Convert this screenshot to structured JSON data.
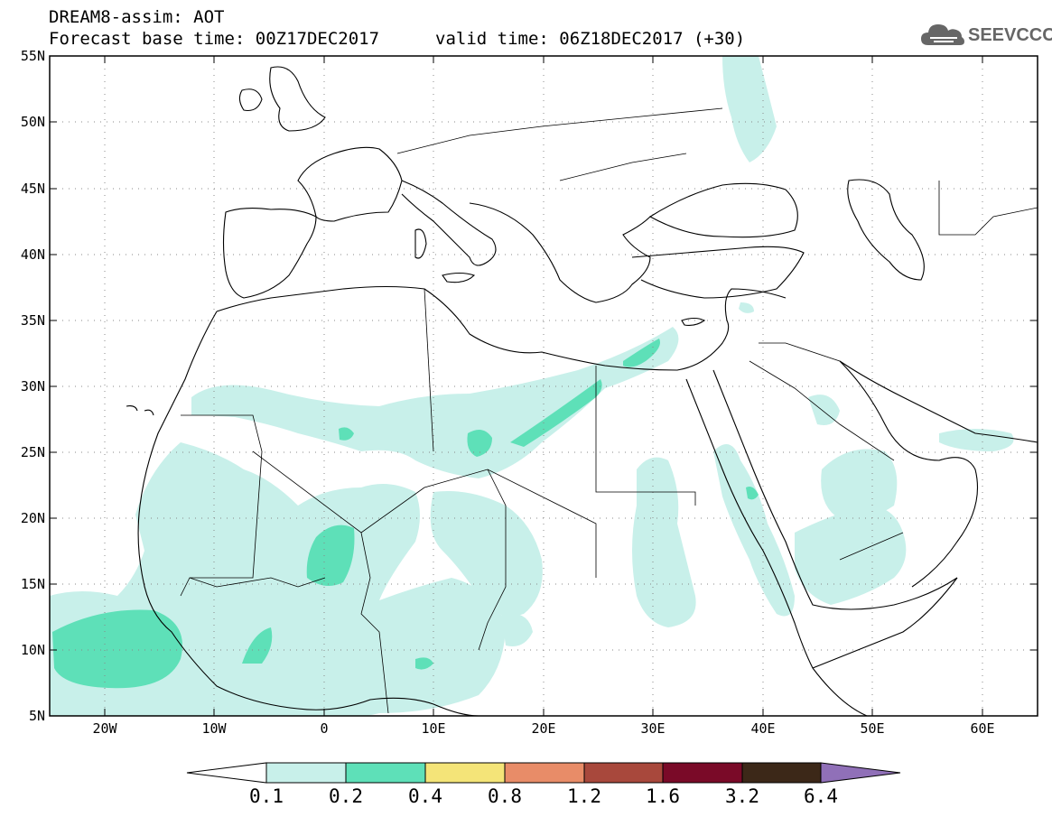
{
  "title": {
    "line1": "DREAM8-assim: AOT",
    "base_time": "Forecast base time: 00Z17DEC2017",
    "valid_time": "valid time: 06Z18DEC2017 (+30)"
  },
  "logo": {
    "text": "SEEVCCC",
    "icon": "cloud-icon"
  },
  "axes": {
    "lat_labels": [
      "55N",
      "50N",
      "45N",
      "40N",
      "35N",
      "30N",
      "25N",
      "20N",
      "15N",
      "10N",
      "5N"
    ],
    "lon_labels": [
      "20W",
      "10W",
      "0",
      "10E",
      "20E",
      "30E",
      "40E",
      "50E",
      "60E"
    ]
  },
  "colors": {
    "c1": "#c8f0ea",
    "c2": "#5ee0b8",
    "c3": "#f4e478",
    "c4": "#e88c68",
    "c5": "#a8483c",
    "c6": "#7a0a28",
    "c7": "#3c2818",
    "c8": "#9070b8"
  },
  "colorbar": {
    "labels": [
      "0.1",
      "0.2",
      "0.4",
      "0.8",
      "1.2",
      "1.6",
      "3.2",
      "6.4"
    ],
    "colors": [
      "#ffffff",
      "#c8f0ea",
      "#5ee0b8",
      "#f4e478",
      "#e88c68",
      "#a8483c",
      "#7a0a28",
      "#3c2818",
      "#9070b8"
    ]
  }
}
